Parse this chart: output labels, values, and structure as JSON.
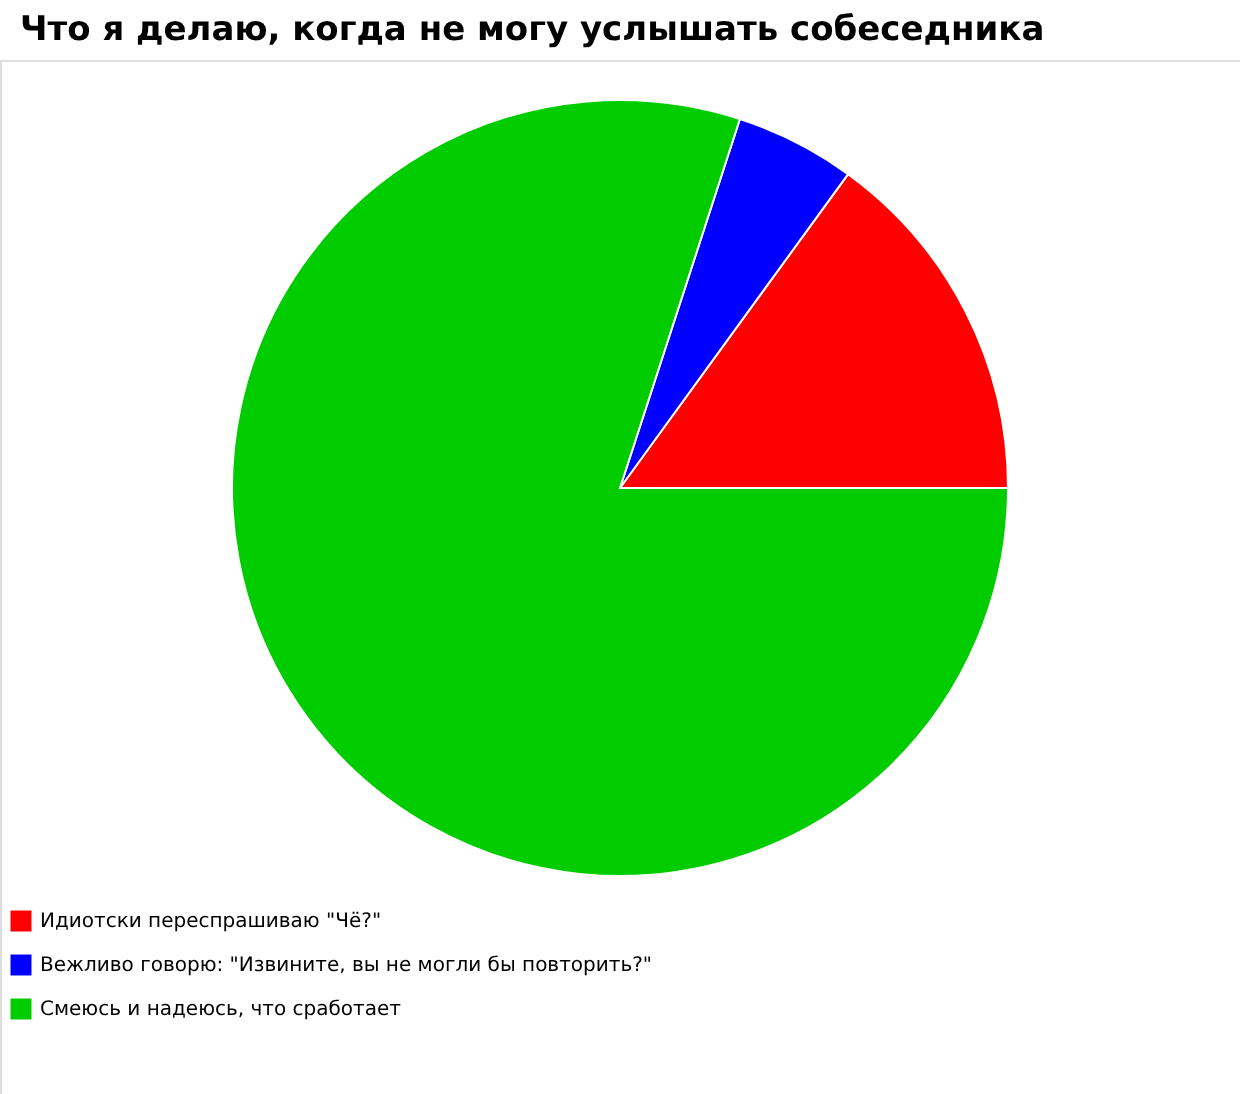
{
  "chart_data": {
    "type": "pie",
    "title": "Что я делаю, когда не могу услышать собеседника",
    "categories": [
      "Идиотски переспрашиваю \"Чё?\"",
      "Вежливо говорю: \"Извините, вы не могли бы повторить?\"",
      "Смеюсь и надеюсь, что сработает"
    ],
    "values": [
      15,
      5,
      80
    ],
    "colors": [
      "#ff0000",
      "#0000ff",
      "#00cc00"
    ],
    "legend": "bottom left"
  }
}
